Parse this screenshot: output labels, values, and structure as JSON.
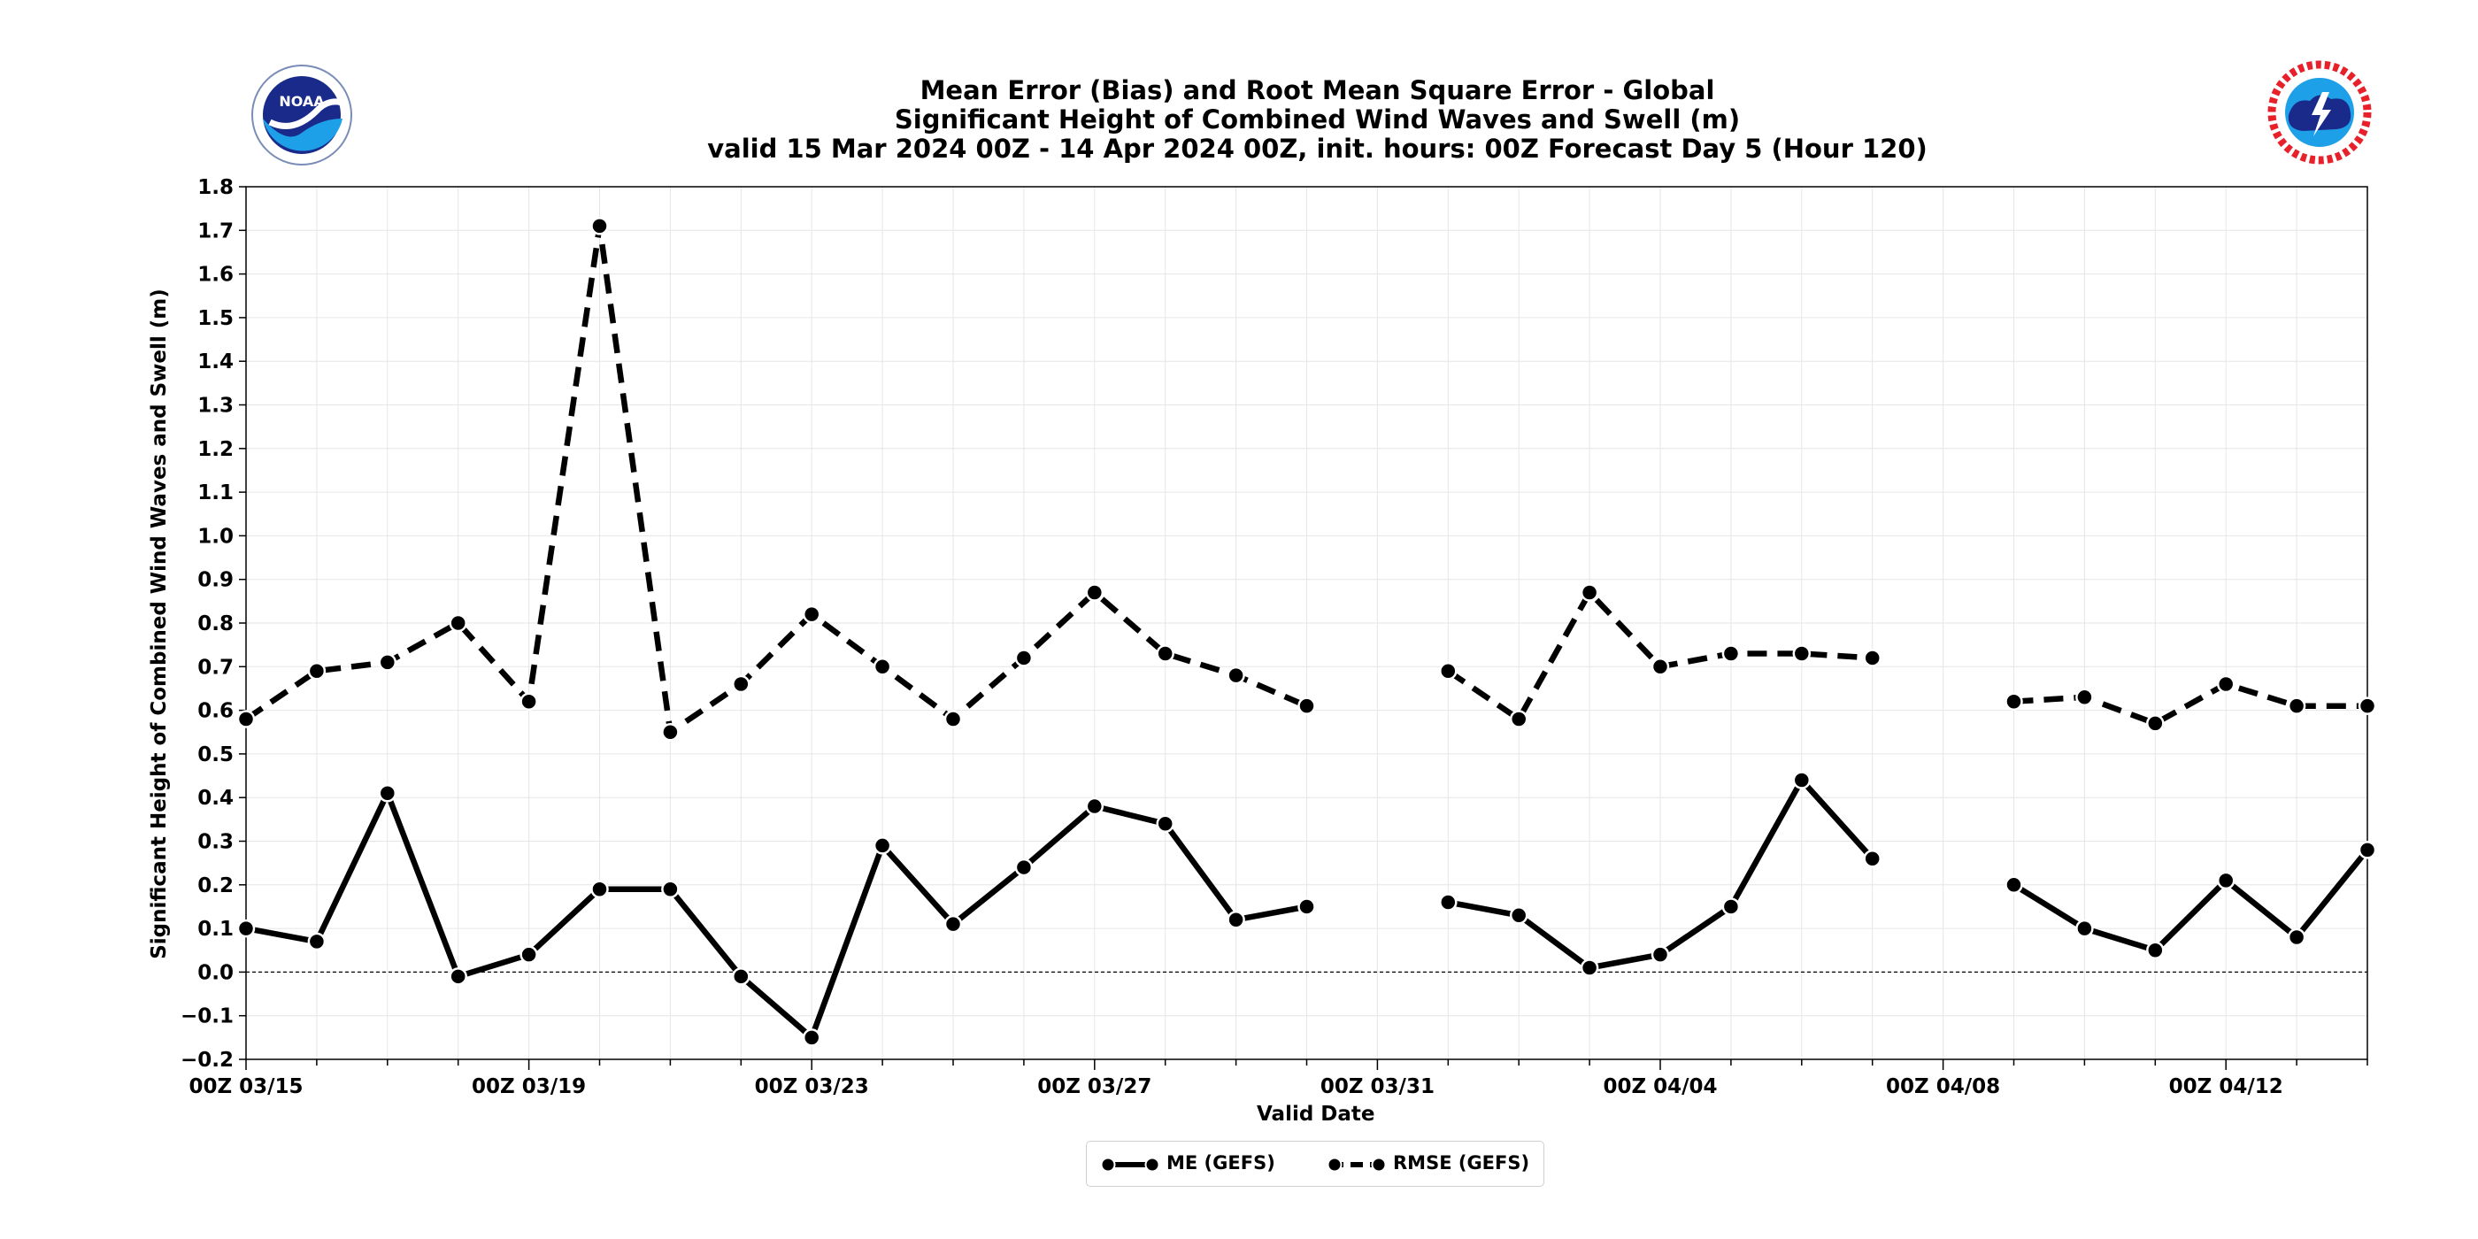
{
  "title": {
    "line1": "Mean Error (Bias) and Root Mean Square Error - Global",
    "line2": "Significant Height of Combined Wind Waves and Swell (m)",
    "line3": "valid 15 Mar 2024 00Z - 14 Apr 2024 00Z, init. hours: 00Z Forecast Day 5 (Hour 120)"
  },
  "logos": {
    "left": "noaa-logo",
    "left_text": "NOAA",
    "right": "nws-logo"
  },
  "colors": {
    "series": "#000000",
    "grid": "#e6e6e6",
    "marker_edge": "#ffffff"
  },
  "chart_data": {
    "type": "line",
    "title": "Mean Error (Bias) and Root Mean Square Error - Global\nSignificant Height of Combined Wind Waves and Swell (m)\nvalid 15 Mar 2024 00Z - 14 Apr 2024 00Z, init. hours: 00Z Forecast Day 5 (Hour 120)",
    "xlabel": "Valid Date",
    "ylabel": "Significant Height of Combined Wind Waves and Swell (m)",
    "xlim": [
      "2024-03-15",
      "2024-04-14"
    ],
    "ylim": [
      -0.2,
      1.8
    ],
    "x_ticks": [
      "00Z 03/15",
      "00Z 03/19",
      "00Z 03/23",
      "00Z 03/27",
      "00Z 03/31",
      "00Z 04/04",
      "00Z 04/08",
      "00Z 04/12"
    ],
    "y_ticks": [
      "−0.2",
      "−0.1",
      "0.0",
      "0.1",
      "0.2",
      "0.3",
      "0.4",
      "0.5",
      "0.6",
      "0.7",
      "0.8",
      "0.9",
      "1.0",
      "1.1",
      "1.2",
      "1.3",
      "1.4",
      "1.5",
      "1.6",
      "1.7",
      "1.8"
    ],
    "reference_line": 0.0,
    "grid": true,
    "legend_position": "bottom-center",
    "x": [
      "2024-03-15",
      "2024-03-16",
      "2024-03-17",
      "2024-03-18",
      "2024-03-19",
      "2024-03-20",
      "2024-03-21",
      "2024-03-22",
      "2024-03-23",
      "2024-03-24",
      "2024-03-25",
      "2024-03-26",
      "2024-03-27",
      "2024-03-28",
      "2024-03-29",
      "2024-03-30",
      "2024-03-31",
      "2024-04-01",
      "2024-04-02",
      "2024-04-03",
      "2024-04-04",
      "2024-04-05",
      "2024-04-06",
      "2024-04-07",
      "2024-04-08",
      "2024-04-09",
      "2024-04-10",
      "2024-04-11",
      "2024-04-12",
      "2024-04-13",
      "2024-04-14"
    ],
    "series": [
      {
        "name": "ME (GEFS)",
        "style": "solid",
        "values": [
          0.1,
          0.07,
          0.41,
          -0.01,
          0.04,
          0.19,
          0.19,
          -0.01,
          -0.15,
          0.29,
          0.11,
          0.24,
          0.38,
          0.34,
          0.12,
          0.15,
          null,
          0.16,
          0.13,
          0.01,
          0.04,
          0.15,
          0.44,
          0.26,
          null,
          0.2,
          0.1,
          0.05,
          0.21,
          0.08,
          0.28
        ]
      },
      {
        "name": "RMSE (GEFS)",
        "style": "dashed",
        "values": [
          0.58,
          0.69,
          0.71,
          0.8,
          0.62,
          1.71,
          0.55,
          0.66,
          0.82,
          0.7,
          0.58,
          0.72,
          0.87,
          0.73,
          0.68,
          0.61,
          null,
          0.69,
          0.58,
          0.87,
          0.7,
          0.73,
          0.73,
          0.72,
          null,
          0.62,
          0.63,
          0.57,
          0.66,
          0.61,
          0.61
        ]
      }
    ]
  }
}
